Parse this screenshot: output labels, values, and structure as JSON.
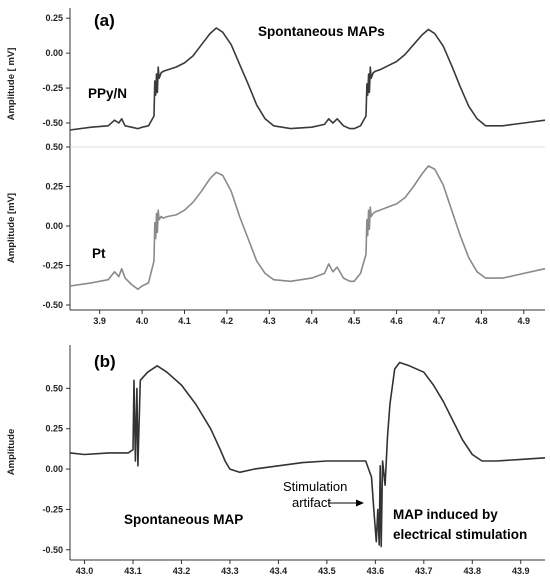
{
  "chart_data": [
    {
      "type": "line",
      "panel_label": "(a)",
      "title": "Spontaneous MAPs",
      "ylabel": "Amplitude [ mV]",
      "ylim": [
        -0.55,
        0.28
      ],
      "yticks": [
        "0.25",
        "0.00",
        "-0.25",
        "-0.50"
      ],
      "xlim": [
        3.83,
        4.95
      ],
      "xticks": [],
      "grid": false,
      "series": [
        {
          "name": "PPy/N",
          "color": "#3a3a3a",
          "x": [
            3.83,
            3.88,
            3.92,
            3.935,
            3.945,
            3.952,
            3.96,
            3.975,
            3.99,
            4.0,
            4.015,
            4.028,
            4.03,
            4.032,
            4.034,
            4.036,
            4.038,
            4.04,
            4.045,
            4.05,
            4.06,
            4.08,
            4.1,
            4.12,
            4.14,
            4.16,
            4.175,
            4.19,
            4.21,
            4.23,
            4.25,
            4.27,
            4.29,
            4.31,
            4.35,
            4.4,
            4.43,
            4.44,
            4.45,
            4.46,
            4.475,
            4.49,
            4.5,
            4.515,
            4.528,
            4.53,
            4.532,
            4.534,
            4.536,
            4.538,
            4.54,
            4.545,
            4.55,
            4.56,
            4.58,
            4.6,
            4.62,
            4.64,
            4.66,
            4.675,
            4.69,
            4.71,
            4.73,
            4.75,
            4.77,
            4.79,
            4.81,
            4.85,
            4.9,
            4.95
          ],
          "y": [
            -0.55,
            -0.53,
            -0.52,
            -0.48,
            -0.5,
            -0.47,
            -0.52,
            -0.53,
            -0.54,
            -0.53,
            -0.52,
            -0.45,
            -0.2,
            -0.3,
            -0.15,
            -0.28,
            -0.1,
            -0.18,
            -0.14,
            -0.13,
            -0.12,
            -0.1,
            -0.07,
            -0.02,
            0.06,
            0.14,
            0.18,
            0.15,
            0.06,
            -0.08,
            -0.22,
            -0.37,
            -0.47,
            -0.52,
            -0.54,
            -0.53,
            -0.51,
            -0.47,
            -0.5,
            -0.47,
            -0.52,
            -0.54,
            -0.54,
            -0.52,
            -0.45,
            -0.22,
            -0.3,
            -0.15,
            -0.28,
            -0.1,
            -0.18,
            -0.14,
            -0.13,
            -0.12,
            -0.09,
            -0.06,
            -0.01,
            0.06,
            0.13,
            0.17,
            0.14,
            0.05,
            -0.09,
            -0.24,
            -0.38,
            -0.47,
            -0.52,
            -0.52,
            -0.5,
            -0.48
          ]
        }
      ]
    },
    {
      "type": "line",
      "panel_label": "",
      "title": "",
      "ylabel": "Amplitude [mV]",
      "ylim": [
        -0.5,
        0.5
      ],
      "yticks": [
        "0.50",
        "0.25",
        "0.00",
        "-0.25",
        "-0.50"
      ],
      "xlim": [
        3.83,
        4.95
      ],
      "xticks": [
        "3.9",
        "4.0",
        "4.1",
        "4.2",
        "4.3",
        "4.4",
        "4.5",
        "4.6",
        "4.7",
        "4.8",
        "4.9"
      ],
      "grid": false,
      "series": [
        {
          "name": "Pt",
          "color": "#8a8a8a",
          "x": [
            3.83,
            3.88,
            3.92,
            3.935,
            3.945,
            3.952,
            3.96,
            3.975,
            3.99,
            4.0,
            4.015,
            4.028,
            4.03,
            4.032,
            4.034,
            4.036,
            4.038,
            4.04,
            4.045,
            4.05,
            4.06,
            4.08,
            4.1,
            4.12,
            4.14,
            4.16,
            4.175,
            4.19,
            4.21,
            4.23,
            4.25,
            4.27,
            4.29,
            4.31,
            4.35,
            4.4,
            4.43,
            4.44,
            4.45,
            4.46,
            4.475,
            4.49,
            4.5,
            4.515,
            4.528,
            4.53,
            4.532,
            4.534,
            4.536,
            4.538,
            4.54,
            4.545,
            4.55,
            4.56,
            4.58,
            4.6,
            4.62,
            4.64,
            4.66,
            4.675,
            4.69,
            4.71,
            4.73,
            4.75,
            4.77,
            4.79,
            4.81,
            4.85,
            4.9,
            4.95
          ],
          "y": [
            -0.38,
            -0.36,
            -0.34,
            -0.29,
            -0.32,
            -0.27,
            -0.33,
            -0.37,
            -0.4,
            -0.38,
            -0.36,
            -0.22,
            0.02,
            -0.08,
            0.08,
            -0.04,
            0.1,
            0.04,
            0.06,
            0.05,
            0.06,
            0.07,
            0.1,
            0.15,
            0.22,
            0.3,
            0.34,
            0.32,
            0.22,
            0.06,
            -0.08,
            -0.22,
            -0.3,
            -0.34,
            -0.35,
            -0.33,
            -0.3,
            -0.24,
            -0.29,
            -0.26,
            -0.33,
            -0.35,
            -0.35,
            -0.3,
            -0.18,
            0.04,
            -0.06,
            0.1,
            -0.02,
            0.12,
            0.06,
            0.08,
            0.09,
            0.1,
            0.12,
            0.14,
            0.18,
            0.25,
            0.33,
            0.38,
            0.36,
            0.26,
            0.1,
            -0.06,
            -0.2,
            -0.29,
            -0.33,
            -0.33,
            -0.3,
            -0.27
          ]
        }
      ]
    },
    {
      "type": "line",
      "panel_label": "(b)",
      "title": "",
      "ylabel": "Amplitude",
      "ylim": [
        -0.52,
        0.75
      ],
      "yticks": [
        "0.50",
        "0.25",
        "0.00",
        "-0.25",
        "-0.50"
      ],
      "xlim": [
        42.97,
        43.95
      ],
      "xticks": [
        "43.0",
        "43.1",
        "43.2",
        "43.3",
        "43.4",
        "43.5",
        "43.6",
        "43.7",
        "43.8",
        "43.9"
      ],
      "grid": false,
      "annotations": [
        "Spontaneous MAP",
        "Stimulation",
        "artifact",
        "MAP induced by",
        "electrical stimulation"
      ],
      "series": [
        {
          "name": "",
          "color": "#333333",
          "x": [
            42.97,
            43.0,
            43.05,
            43.09,
            43.1,
            43.102,
            43.105,
            43.108,
            43.11,
            43.115,
            43.13,
            43.15,
            43.17,
            43.2,
            43.23,
            43.26,
            43.28,
            43.29,
            43.3,
            43.32,
            43.35,
            43.4,
            43.45,
            43.5,
            43.55,
            43.58,
            43.592,
            43.598,
            43.602,
            43.605,
            43.608,
            43.61,
            43.612,
            43.615,
            43.62,
            43.625,
            43.63,
            43.64,
            43.65,
            43.67,
            43.7,
            43.72,
            43.74,
            43.76,
            43.78,
            43.8,
            43.82,
            43.85,
            43.9,
            43.95
          ],
          "y": [
            0.1,
            0.09,
            0.1,
            0.1,
            0.12,
            0.55,
            0.05,
            0.5,
            0.02,
            0.55,
            0.6,
            0.64,
            0.6,
            0.52,
            0.4,
            0.25,
            0.12,
            0.05,
            0.0,
            -0.02,
            0.0,
            0.02,
            0.04,
            0.05,
            0.05,
            0.05,
            -0.05,
            -0.3,
            -0.45,
            -0.25,
            -0.47,
            0.02,
            -0.48,
            0.05,
            -0.1,
            0.2,
            0.4,
            0.62,
            0.66,
            0.64,
            0.6,
            0.52,
            0.42,
            0.3,
            0.18,
            0.09,
            0.05,
            0.05,
            0.06,
            0.07
          ]
        }
      ]
    }
  ]
}
